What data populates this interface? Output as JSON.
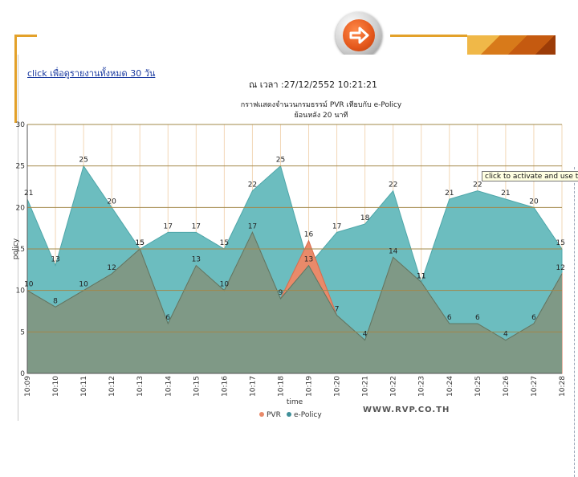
{
  "header": {
    "link_text": "click เพื่อดูรายงานทั้งหมด 30 วัน",
    "datetime_text": "ณ เวลา :27/12/2552 10:21:21",
    "tooltip_text": "click to activate and use this control"
  },
  "footer": {
    "website": "WWW.RVP.CO.TH"
  },
  "colors": {
    "epolicy": "#6cbdbf",
    "pvr": "#e98a6a",
    "overlap": "#7f9986",
    "accent": "#e3a12a"
  },
  "chart_data": {
    "type": "area",
    "title": "กราฟแสดงจำนวนกรมธรรม์ PVR เทียบกับ e-Policy",
    "subtitle": "ย้อนหลัง 20 นาที",
    "xlabel": "time",
    "ylabel": "policy",
    "ylim": [
      0,
      30
    ],
    "yticks": [
      "0",
      "5",
      "10",
      "15",
      "20",
      "25",
      "30"
    ],
    "categories": [
      "10:09",
      "10:10",
      "10:11",
      "10:12",
      "10:13",
      "10:14",
      "10:15",
      "10:16",
      "10:17",
      "10:18",
      "10:19",
      "10:20",
      "10:21",
      "10:22",
      "10:23",
      "10:24",
      "10:25",
      "10:26",
      "10:27",
      "10:28"
    ],
    "series": [
      {
        "name": "PVR",
        "values": [
          10,
          8,
          10,
          12,
          15,
          6,
          13,
          10,
          17,
          9,
          16,
          7,
          4,
          14,
          11,
          6,
          6,
          4,
          6,
          12
        ]
      },
      {
        "name": "e-Policy",
        "values": [
          21,
          13,
          25,
          20,
          15,
          17,
          17,
          15,
          22,
          25,
          13,
          17,
          18,
          22,
          11,
          21,
          22,
          21,
          20,
          15
        ]
      }
    ],
    "legend": [
      "PVR",
      "e-Policy"
    ],
    "legend_position": "bottom",
    "grid": true
  }
}
